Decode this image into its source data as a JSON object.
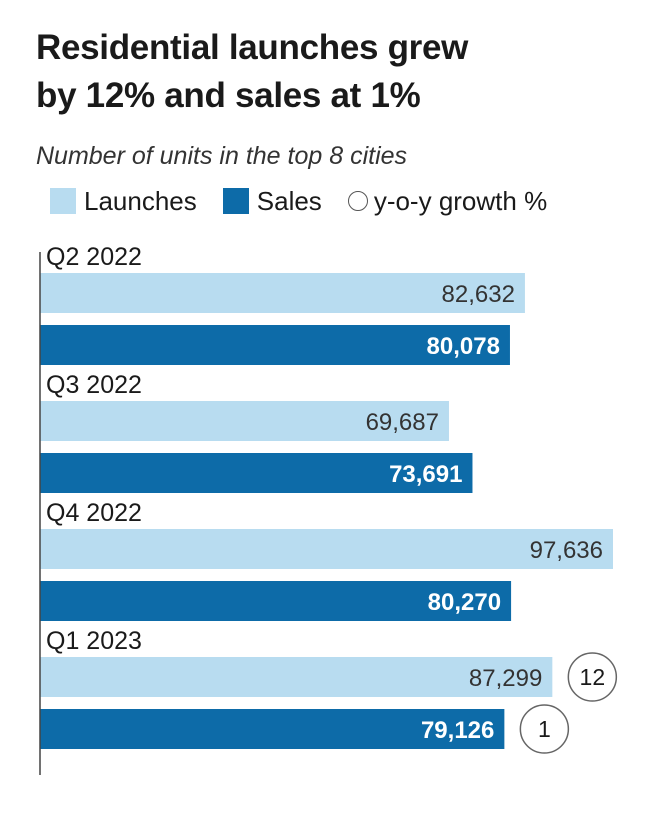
{
  "title_line1": "Residential launches grew",
  "title_line2": "by 12% and sales at 1%",
  "subtitle": "Number of units in the top 8 cities",
  "legend": {
    "launches": "Launches",
    "sales": "Sales",
    "growth": "y-o-y growth %"
  },
  "colors": {
    "launches": "#b8dcf0",
    "sales": "#0d6ba8"
  },
  "chart_data": {
    "type": "bar",
    "orientation": "horizontal",
    "categories": [
      "Q2 2022",
      "Q3 2022",
      "Q4 2022",
      "Q1 2023"
    ],
    "series": [
      {
        "name": "Launches",
        "values": [
          82632,
          69687,
          97636,
          87299
        ]
      },
      {
        "name": "Sales",
        "values": [
          80078,
          73691,
          80270,
          79126
        ]
      }
    ],
    "value_labels": {
      "Launches": [
        "82,632",
        "69,687",
        "97,636",
        "87,299"
      ],
      "Sales": [
        "80,078",
        "73,691",
        "80,270",
        "79,126"
      ]
    },
    "growth": {
      "name": "y-o-y growth %",
      "Launches": [
        null,
        null,
        null,
        "12"
      ],
      "Sales": [
        null,
        null,
        null,
        "1"
      ]
    },
    "xlim": [
      0,
      97636
    ],
    "grid": false
  }
}
